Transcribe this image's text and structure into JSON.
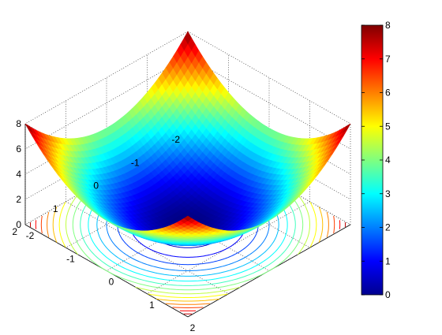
{
  "chart_data": {
    "type": "surface",
    "function": "z = x^2 + y^2",
    "x_range": [
      -2,
      2
    ],
    "y_range": [
      -2,
      2
    ],
    "zlim": [
      0,
      8
    ],
    "x_ticks": [
      "-2",
      "-1",
      "0",
      "1",
      "2"
    ],
    "y_ticks": [
      "-2",
      "-1",
      "0",
      "1",
      "2"
    ],
    "z_ticks": [
      "0",
      "2",
      "4",
      "6",
      "8"
    ],
    "contour_levels": [
      0.5,
      1,
      1.5,
      2,
      2.5,
      3,
      3.5,
      4,
      4.5,
      5,
      5.5,
      6,
      6.5,
      7,
      7.5
    ],
    "colormap": "jet",
    "colorbar": {
      "range": [
        0,
        8
      ],
      "ticks": [
        "0",
        "1",
        "2",
        "3",
        "4",
        "5",
        "6",
        "7",
        "8"
      ],
      "placement": "right"
    },
    "grid": true,
    "box": "dotted",
    "title": "",
    "xlabel": "",
    "ylabel": "",
    "zlabel": ""
  }
}
